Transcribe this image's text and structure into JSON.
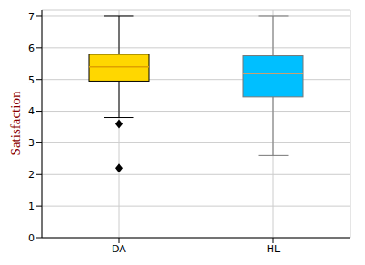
{
  "chart_data": {
    "type": "box",
    "y_label": "Satisfaction",
    "categories": [
      "DA",
      "HL"
    ],
    "boxes": [
      {
        "color": "#ffd700",
        "whisker_low": 3.8,
        "q1": 4.95,
        "median": 5.4,
        "q3": 5.8,
        "whisker_high": 7,
        "outliers": [
          3.6,
          2.2
        ]
      },
      {
        "color": "#00bfff",
        "whisker_low": 2.6,
        "q1": 4.45,
        "median": 5.2,
        "q3": 5.75,
        "whisker_high": 7,
        "outliers": []
      }
    ],
    "ylim": [
      0,
      7.2
    ],
    "yticks": [
      0,
      1,
      2,
      3,
      4,
      5,
      6,
      7
    ],
    "grid": true
  }
}
